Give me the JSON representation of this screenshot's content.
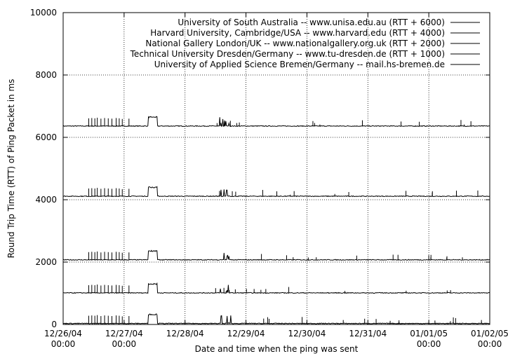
{
  "chart_data": {
    "type": "line",
    "title": "",
    "xlabel": "Date and time when the ping was sent",
    "ylabel": "Round Trip Time (RTT) of Ping Packet in ms",
    "ylim": [
      0,
      10000
    ],
    "xlim": [
      "12/26/04 00:00",
      "01/02/05 00:00"
    ],
    "grid": true,
    "legend_position": "top-right",
    "y_ticks": [
      "0",
      "2000",
      "4000",
      "6000",
      "8000",
      "10000"
    ],
    "x_ticks": [
      {
        "line1": "12/26/04",
        "line2": "00:00"
      },
      {
        "line1": "12/27/04",
        "line2": "00:00"
      },
      {
        "line1": "12/28/04",
        "line2": ""
      },
      {
        "line1": "12/29/04",
        "line2": ""
      },
      {
        "line1": "12/30/04",
        "line2": ""
      },
      {
        "line1": "12/31/04",
        "line2": ""
      },
      {
        "line1": "01/01/05",
        "line2": "00:00"
      },
      {
        "line1": "01/02/05",
        "line2": "00:00"
      }
    ],
    "series": [
      {
        "name": "University of South Australia -- www.unisa.edu.au (RTT + 6000)",
        "offset": 6000,
        "baseline": 6350
      },
      {
        "name": "Harvard University, Cambridge/USA -- www.harvard.edu (RTT + 4000)",
        "offset": 4000,
        "baseline": 4100
      },
      {
        "name": "National Gallery London/UK -- www.nationalgallery.org.uk (RTT + 2000)",
        "offset": 2000,
        "baseline": 2060
      },
      {
        "name": "Technical University Dresden/Germany -- www.tu-dresden.de (RTT + 1000)",
        "offset": 1000,
        "baseline": 1000
      },
      {
        "name": "University of Applied Science Bremen/Germany -- mail.hs-bremen.de",
        "offset": 0,
        "baseline": 20
      }
    ],
    "common_features": {
      "spike_days": [
        0.42,
        0.47,
        0.52,
        0.56,
        0.62,
        0.68,
        0.74,
        0.8,
        0.87,
        0.92,
        0.97,
        1.08
      ],
      "spike_heights": [
        260,
        270,
        260,
        280,
        250,
        270,
        260,
        250,
        270,
        260,
        240,
        250
      ],
      "plateau_start_day": 1.4,
      "plateau_end_day": 1.55,
      "plateau_height": 280,
      "burst_start_day": 2.55,
      "burst_end_day": 2.75,
      "burst_height": 300
    }
  }
}
